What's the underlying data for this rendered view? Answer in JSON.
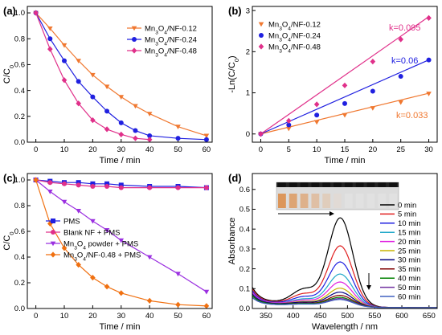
{
  "chart_data": [
    {
      "type": "line",
      "panel_label": "(a)",
      "xlabel": "Time / min",
      "ylabel": "C/C0",
      "ylabel_main": "C/C",
      "ylabel_sub": "0",
      "xlim": [
        -3,
        62
      ],
      "ylim": [
        0,
        1.05
      ],
      "xticks": [
        0,
        10,
        20,
        30,
        40,
        50,
        60
      ],
      "yticks": [
        0.0,
        0.2,
        0.4,
        0.6,
        0.8,
        1.0
      ],
      "xtick_labels": [
        "0",
        "10",
        "20",
        "30",
        "40",
        "50",
        "60"
      ],
      "ytick_labels": [
        "0.0",
        "0.2",
        "0.4",
        "0.6",
        "0.8",
        "1.0"
      ],
      "legend_position": "top-right",
      "series": [
        {
          "name": "Mn3O4/NF-0.12",
          "name_parts": [
            "Mn",
            "3",
            "O",
            "4",
            "/NF-0.12"
          ],
          "color": "#f07830",
          "marker": "triangle-down",
          "x": [
            0,
            5,
            10,
            15,
            20,
            25,
            30,
            35,
            40,
            50,
            60
          ],
          "y": [
            1.0,
            0.88,
            0.75,
            0.63,
            0.52,
            0.43,
            0.35,
            0.28,
            0.22,
            0.12,
            0.05
          ]
        },
        {
          "name": "Mn3O4/NF-0.24",
          "name_parts": [
            "Mn",
            "3",
            "O",
            "4",
            "/NF-0.24"
          ],
          "color": "#2020e0",
          "marker": "circle",
          "x": [
            0,
            5,
            10,
            15,
            20,
            25,
            30,
            35,
            40,
            50,
            60
          ],
          "y": [
            1.0,
            0.8,
            0.63,
            0.47,
            0.35,
            0.24,
            0.15,
            0.09,
            0.05,
            0.03,
            0.02
          ]
        },
        {
          "name": "Mn3O4/NF-0.48",
          "name_parts": [
            "Mn",
            "3",
            "O",
            "4",
            "/NF-0.48"
          ],
          "color": "#e0308a",
          "marker": "diamond",
          "x": [
            0,
            5,
            10,
            15,
            20,
            25,
            30,
            35,
            40
          ],
          "y": [
            1.0,
            0.72,
            0.48,
            0.3,
            0.17,
            0.1,
            0.06,
            0.03,
            0.02
          ]
        }
      ]
    },
    {
      "type": "scatter",
      "panel_label": "(b)",
      "xlabel": "Time / min",
      "ylabel": "-Ln(C/C0)",
      "ylabel_main": "-Ln(C/C",
      "ylabel_sub": "0",
      "ylabel_end": ")",
      "xlim": [
        -1.5,
        31.5
      ],
      "ylim": [
        -0.2,
        3.1
      ],
      "xticks": [
        0,
        5,
        10,
        15,
        20,
        25,
        30
      ],
      "yticks": [
        0,
        1,
        2,
        3
      ],
      "xtick_labels": [
        "0",
        "5",
        "10",
        "15",
        "20",
        "25",
        "30"
      ],
      "ytick_labels": [
        "0",
        "1",
        "2",
        "3"
      ],
      "legend_position": "top-left",
      "series": [
        {
          "name": "Mn3O4/NF-0.12",
          "name_parts": [
            "Mn",
            "3",
            "O",
            "4",
            "/NF-0.12"
          ],
          "color": "#f07830",
          "marker": "triangle-down",
          "x": [
            0,
            5,
            10,
            15,
            20,
            25,
            30
          ],
          "y": [
            0,
            0.13,
            0.29,
            0.46,
            0.63,
            0.77,
            0.98
          ],
          "fit_slope": 0.033,
          "k_label": "k=0.033"
        },
        {
          "name": "Mn3O4/NF-0.24",
          "name_parts": [
            "Mn",
            "3",
            "O",
            "4",
            "/NF-0.24"
          ],
          "color": "#2020e0",
          "marker": "circle",
          "x": [
            0,
            5,
            10,
            15,
            20,
            25,
            30
          ],
          "y": [
            0,
            0.22,
            0.46,
            0.74,
            1.04,
            1.4,
            1.8
          ],
          "fit_slope": 0.06,
          "k_label": "k=0.06"
        },
        {
          "name": "Mn3O4/NF-0.48",
          "name_parts": [
            "Mn",
            "3",
            "O",
            "4",
            "/NF-0.48"
          ],
          "color": "#e0308a",
          "marker": "diamond",
          "x": [
            0,
            5,
            10,
            15,
            20,
            25,
            30
          ],
          "y": [
            0,
            0.32,
            0.72,
            1.18,
            1.76,
            2.3,
            2.82
          ],
          "fit_slope": 0.095,
          "k_label": "k=0.095"
        }
      ]
    },
    {
      "type": "line",
      "panel_label": "(c)",
      "xlabel": "Time / min",
      "ylabel": "C/C0",
      "ylabel_main": "C/C",
      "ylabel_sub": "0",
      "xlim": [
        -3,
        62
      ],
      "ylim": [
        0,
        1.05
      ],
      "xticks": [
        0,
        10,
        20,
        30,
        40,
        50,
        60
      ],
      "yticks": [
        0.0,
        0.2,
        0.4,
        0.6,
        0.8,
        1.0
      ],
      "xtick_labels": [
        "0",
        "10",
        "20",
        "30",
        "40",
        "50",
        "60"
      ],
      "ytick_labels": [
        "0.0",
        "0.2",
        "0.4",
        "0.6",
        "0.8",
        "1.0"
      ],
      "legend_position": "bottom-left",
      "series": [
        {
          "name": "PMS",
          "name_parts": [
            "PMS"
          ],
          "color": "#2020e0",
          "marker": "square",
          "x": [
            0,
            5,
            10,
            15,
            20,
            25,
            30,
            40,
            50,
            60
          ],
          "y": [
            1.0,
            0.99,
            0.98,
            0.98,
            0.97,
            0.97,
            0.96,
            0.95,
            0.95,
            0.94
          ]
        },
        {
          "name": "Blank NF + PMS",
          "name_parts": [
            "Blank NF + PMS"
          ],
          "color": "#e0308a",
          "marker": "circle",
          "x": [
            0,
            5,
            10,
            15,
            20,
            25,
            30,
            40,
            50,
            60
          ],
          "y": [
            1.0,
            0.98,
            0.97,
            0.96,
            0.95,
            0.95,
            0.94,
            0.94,
            0.94,
            0.94
          ]
        },
        {
          "name": "Mn3O4 powder + PMS",
          "name_parts": [
            "Mn",
            "3",
            "O",
            "4",
            " powder + PMS"
          ],
          "color": "#9b30e0",
          "marker": "triangle-down",
          "x": [
            0,
            5,
            10,
            15,
            20,
            25,
            30,
            40,
            50,
            60
          ],
          "y": [
            1.0,
            0.91,
            0.83,
            0.76,
            0.68,
            0.61,
            0.53,
            0.4,
            0.27,
            0.13
          ]
        },
        {
          "name": "Mn3O4/NF-0.48 + PMS",
          "name_parts": [
            "Mn",
            "3",
            "O",
            "4",
            "/NF-0.48 + PMS"
          ],
          "color": "#f07010",
          "marker": "diamond",
          "x": [
            0,
            5,
            10,
            15,
            20,
            25,
            30,
            40,
            50,
            60
          ],
          "y": [
            1.0,
            0.66,
            0.47,
            0.34,
            0.24,
            0.17,
            0.12,
            0.06,
            0.03,
            0.02
          ]
        }
      ]
    },
    {
      "type": "line",
      "panel_label": "(d)",
      "xlabel": "Wavelength / nm",
      "ylabel": "Absorbance",
      "xlim": [
        325,
        665
      ],
      "ylim": [
        0,
        0.68
      ],
      "xticks": [
        350,
        400,
        450,
        500,
        550,
        600,
        650
      ],
      "yticks": [
        0.0,
        0.1,
        0.2,
        0.3,
        0.4,
        0.5,
        0.6
      ],
      "xtick_labels": [
        "350",
        "400",
        "450",
        "500",
        "550",
        "600",
        "650"
      ],
      "ytick_labels": [
        "0.0",
        "0.1",
        "0.2",
        "0.3",
        "0.4",
        "0.5",
        "0.6"
      ],
      "legend_position": "right",
      "series": [
        {
          "name": "0 min",
          "color": "#000000",
          "peak": 0.44,
          "base": 0.06
        },
        {
          "name": "5 min",
          "color": "#e02020",
          "peak": 0.3,
          "base": 0.055
        },
        {
          "name": "10 min",
          "color": "#2020e0",
          "peak": 0.22,
          "base": 0.05
        },
        {
          "name": "15 min",
          "color": "#20a8c8",
          "peak": 0.16,
          "base": 0.045
        },
        {
          "name": "20 min",
          "color": "#e020e0",
          "peak": 0.12,
          "base": 0.045
        },
        {
          "name": "25 min",
          "color": "#c8b400",
          "peak": 0.09,
          "base": 0.04
        },
        {
          "name": "30 min",
          "color": "#000080",
          "peak": 0.07,
          "base": 0.04
        },
        {
          "name": "35 min",
          "color": "#800000",
          "peak": 0.055,
          "base": 0.035
        },
        {
          "name": "40 min",
          "color": "#008000",
          "peak": 0.045,
          "base": 0.035
        },
        {
          "name": "50 min",
          "color": "#7030a0",
          "peak": 0.04,
          "base": 0.03
        },
        {
          "name": "60 min",
          "color": "#4060c0",
          "peak": 0.035,
          "base": 0.03
        }
      ]
    }
  ]
}
